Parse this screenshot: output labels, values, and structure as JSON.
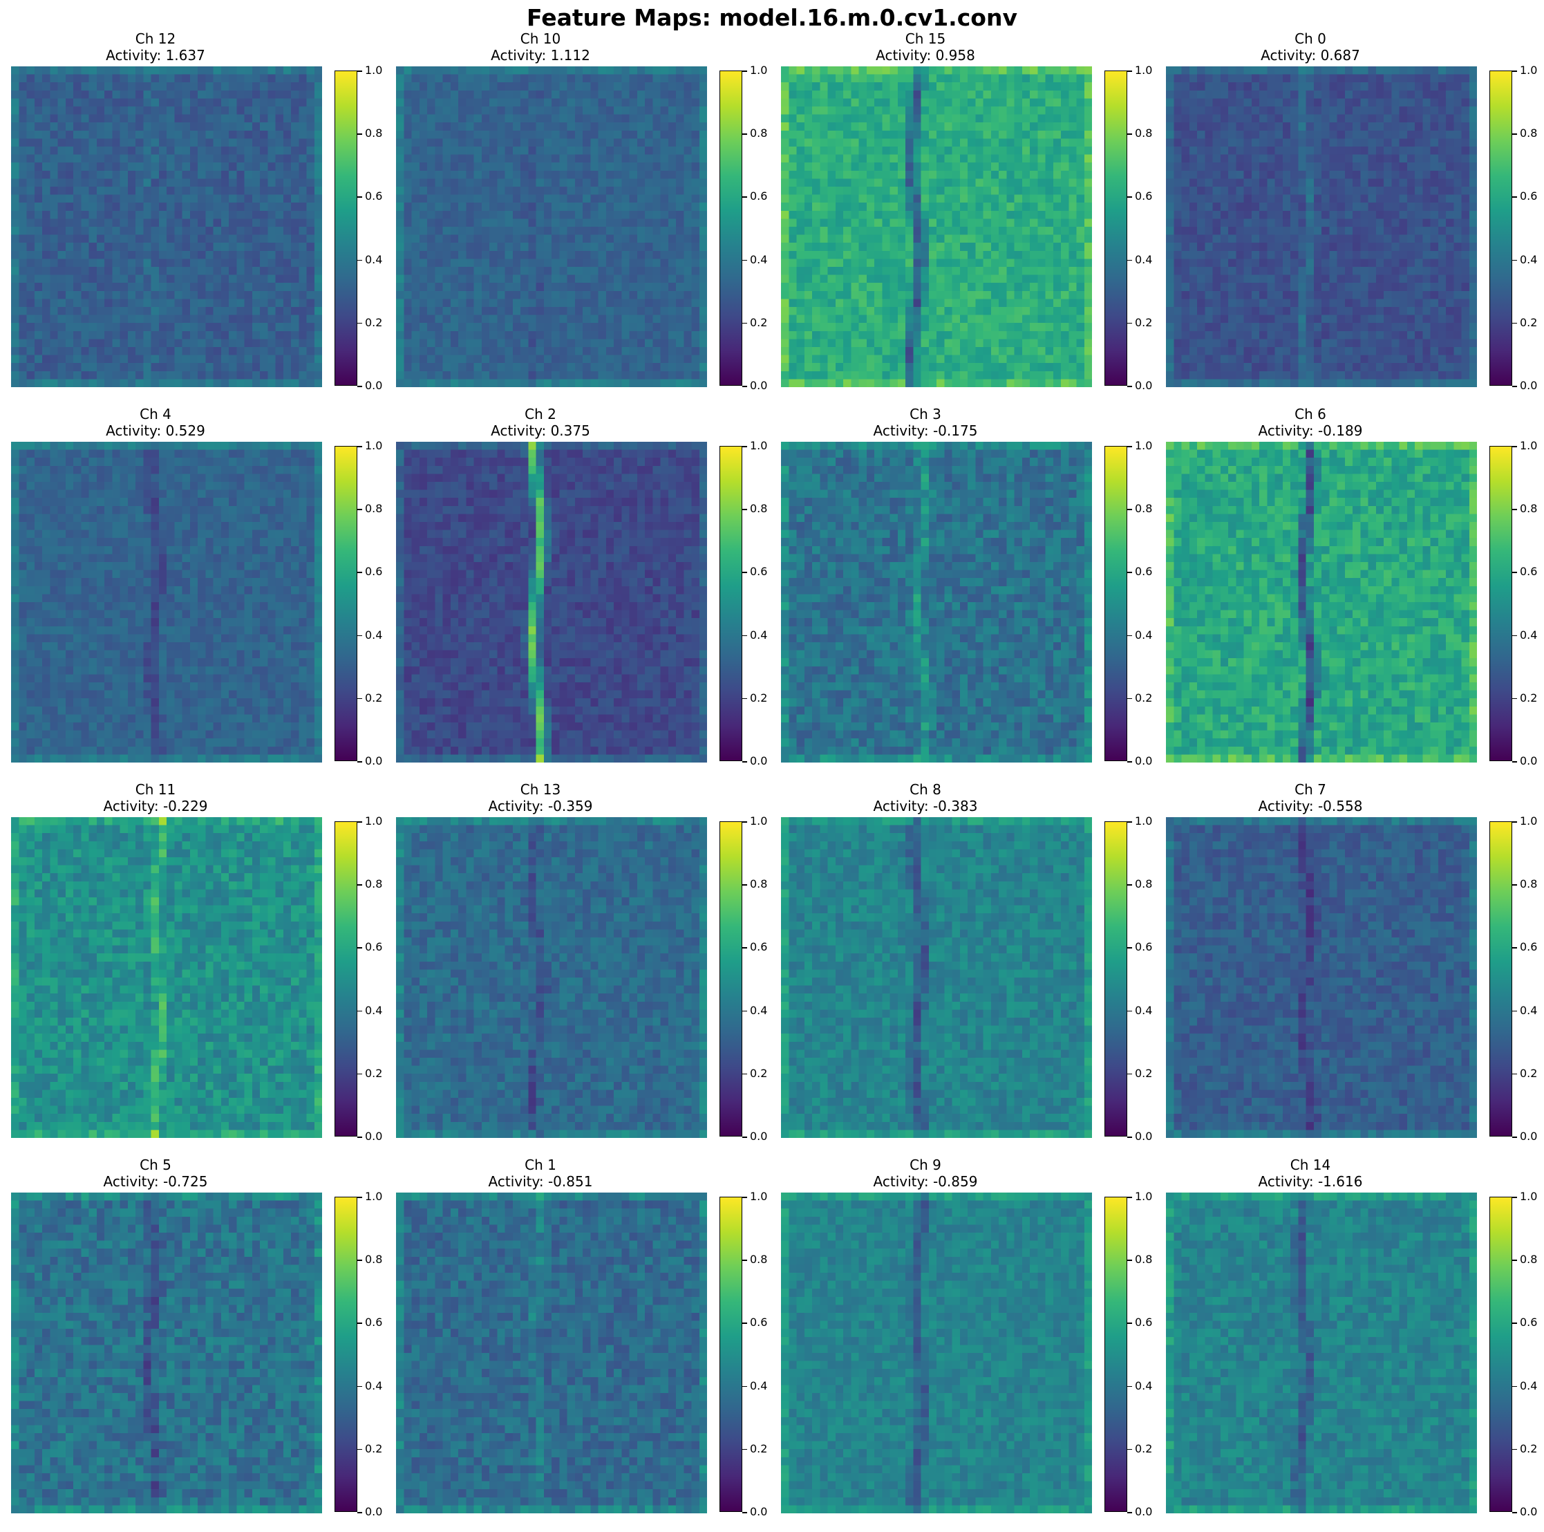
{
  "figure": {
    "title": "Feature Maps: model.16.m.0.cv1.conv"
  },
  "colorbar": {
    "ticks": [
      "0.0",
      "0.2",
      "0.4",
      "0.6",
      "0.8",
      "1.0"
    ],
    "colormap": "viridis",
    "range": [
      0.0,
      1.0
    ]
  },
  "chart_data": {
    "type": "heatmap",
    "title": "Feature Maps: model.16.m.0.cv1.conv",
    "colormap": "viridis",
    "value_range": [
      0.0,
      1.0
    ],
    "layout": {
      "rows": 4,
      "cols": 4
    },
    "panels": [
      {
        "channel": "Ch 12",
        "activity": "Activity: 1.637",
        "activity_value": 1.637
      },
      {
        "channel": "Ch 10",
        "activity": "Activity: 1.112",
        "activity_value": 1.112
      },
      {
        "channel": "Ch 15",
        "activity": "Activity: 0.958",
        "activity_value": 0.958
      },
      {
        "channel": "Ch 0",
        "activity": "Activity: 0.687",
        "activity_value": 0.687
      },
      {
        "channel": "Ch 4",
        "activity": "Activity: 0.529",
        "activity_value": 0.529
      },
      {
        "channel": "Ch 2",
        "activity": "Activity: 0.375",
        "activity_value": 0.375
      },
      {
        "channel": "Ch 3",
        "activity": "Activity: -0.175",
        "activity_value": -0.175
      },
      {
        "channel": "Ch 6",
        "activity": "Activity: -0.189",
        "activity_value": -0.189
      },
      {
        "channel": "Ch 11",
        "activity": "Activity: -0.229",
        "activity_value": -0.229
      },
      {
        "channel": "Ch 13",
        "activity": "Activity: -0.359",
        "activity_value": -0.359
      },
      {
        "channel": "Ch 8",
        "activity": "Activity: -0.383",
        "activity_value": -0.383
      },
      {
        "channel": "Ch 7",
        "activity": "Activity: -0.558",
        "activity_value": -0.558
      },
      {
        "channel": "Ch 5",
        "activity": "Activity: -0.725",
        "activity_value": -0.725
      },
      {
        "channel": "Ch 1",
        "activity": "Activity: -0.851",
        "activity_value": -0.851
      },
      {
        "channel": "Ch 9",
        "activity": "Activity: -0.859",
        "activity_value": -0.859
      },
      {
        "channel": "Ch 14",
        "activity": "Activity: -1.616",
        "activity_value": -1.616
      }
    ]
  }
}
